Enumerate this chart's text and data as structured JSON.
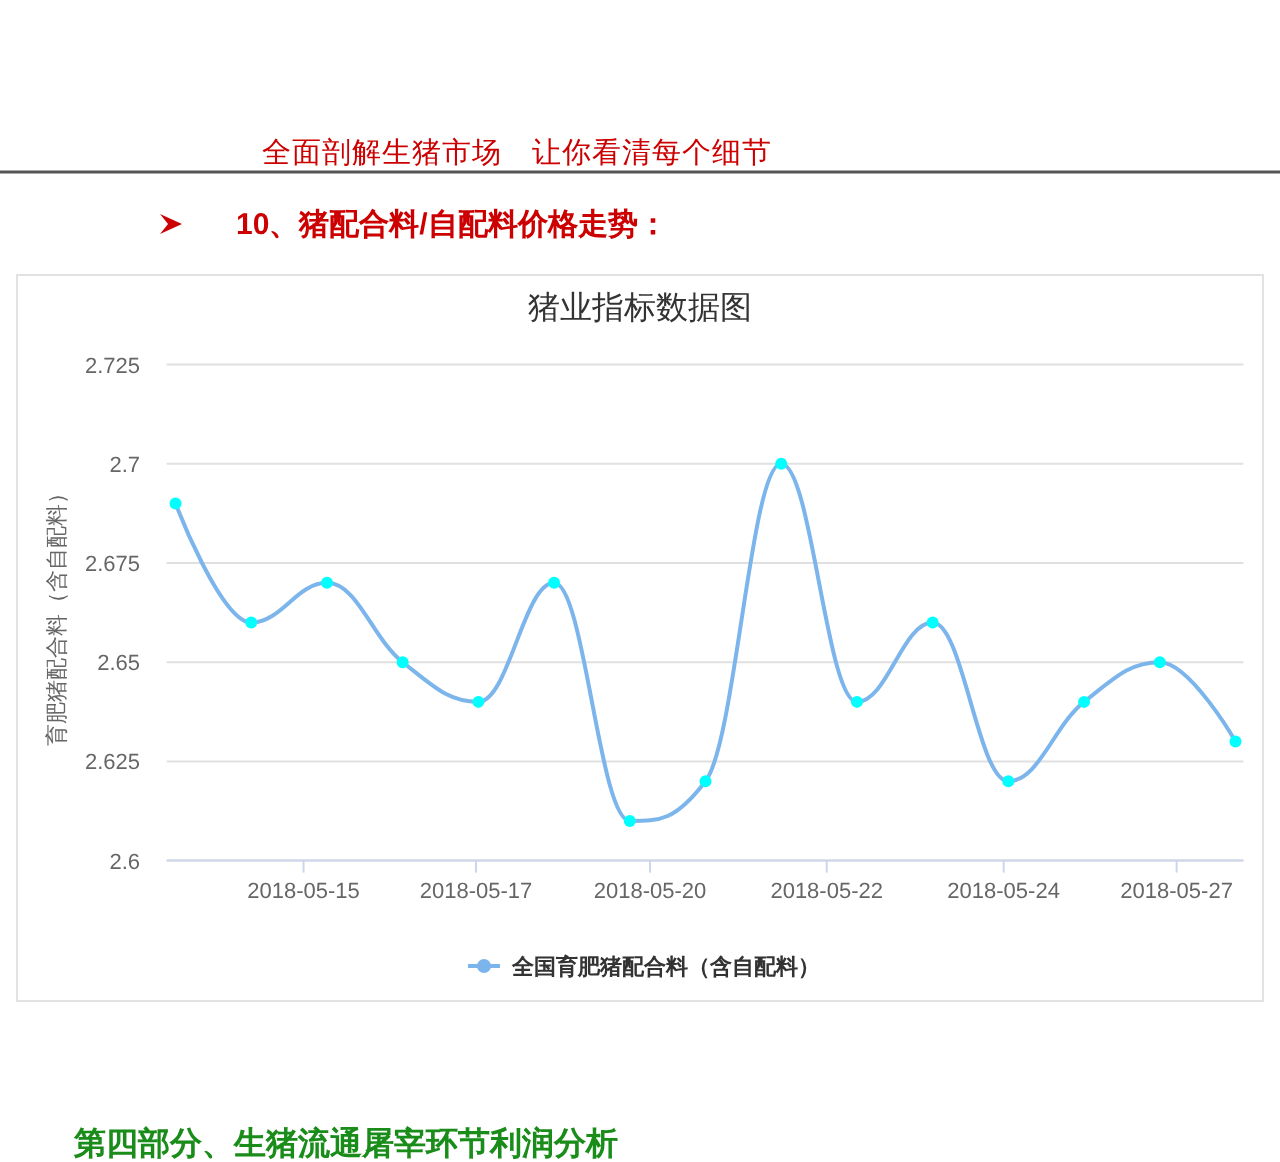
{
  "chart_data": {
    "type": "line",
    "title": "猪业指标数据图",
    "ylabel": "育肥猪配合料（含自配料）",
    "annotations": [
      "全面剖解生猪市场　让你看清每个细节",
      "10、猪配合料/自配料价格走势：",
      "第四部分、生猪流通屠宰环节利润分析"
    ],
    "x": [
      "2018-05-14",
      "2018-05-15",
      "2018-05-16",
      "2018-05-17",
      "2018-05-18",
      "2018-05-19",
      "2018-05-20",
      "2018-05-21",
      "2018-05-22",
      "2018-05-23",
      "2018-05-24",
      "2018-05-25",
      "2018-05-26",
      "2018-05-27",
      "2018-05-28"
    ],
    "series": [
      {
        "name": "全国育肥猪配合料（含自配料）",
        "color": "#7cb5ec",
        "colors": [
          "#00ffff",
          "#00ffff",
          "#00ffff",
          "#00ffff",
          "#00ffff",
          "#00ffff",
          "#00ffff",
          "#00ffff",
          "#00ffff",
          "#00ffff",
          "#00ffff",
          "#00ffff",
          "#00ffff",
          "#00ffff",
          "#00ffff"
        ],
        "values": [
          2.69,
          2.66,
          2.67,
          2.65,
          2.64,
          2.67,
          2.61,
          2.62,
          2.7,
          2.64,
          2.66,
          2.62,
          2.64,
          2.65,
          2.63
        ]
      }
    ],
    "xlim": [
      "2018-05-13T21:10",
      "2018-05-28T02:30"
    ],
    "xticks": [
      {
        "value": "2018-05-15T16:35",
        "label": "2018-05-15"
      },
      {
        "value": "2018-05-17T23:15",
        "label": "2018-05-17"
      },
      {
        "value": "2018-05-20T06:25",
        "label": "2018-05-20"
      },
      {
        "value": "2018-05-22T14:25",
        "label": "2018-05-22"
      },
      {
        "value": "2018-05-24T22:30",
        "label": "2018-05-24"
      },
      {
        "value": "2018-05-27T05:20",
        "label": "2018-05-27"
      }
    ],
    "ylim": [
      2.6,
      2.725
    ],
    "yticks": [
      2.6,
      2.625,
      2.65,
      2.675,
      2.7,
      2.725
    ],
    "grid": "y",
    "legend": "bottom",
    "marker": "circle",
    "line_style": "solid"
  }
}
